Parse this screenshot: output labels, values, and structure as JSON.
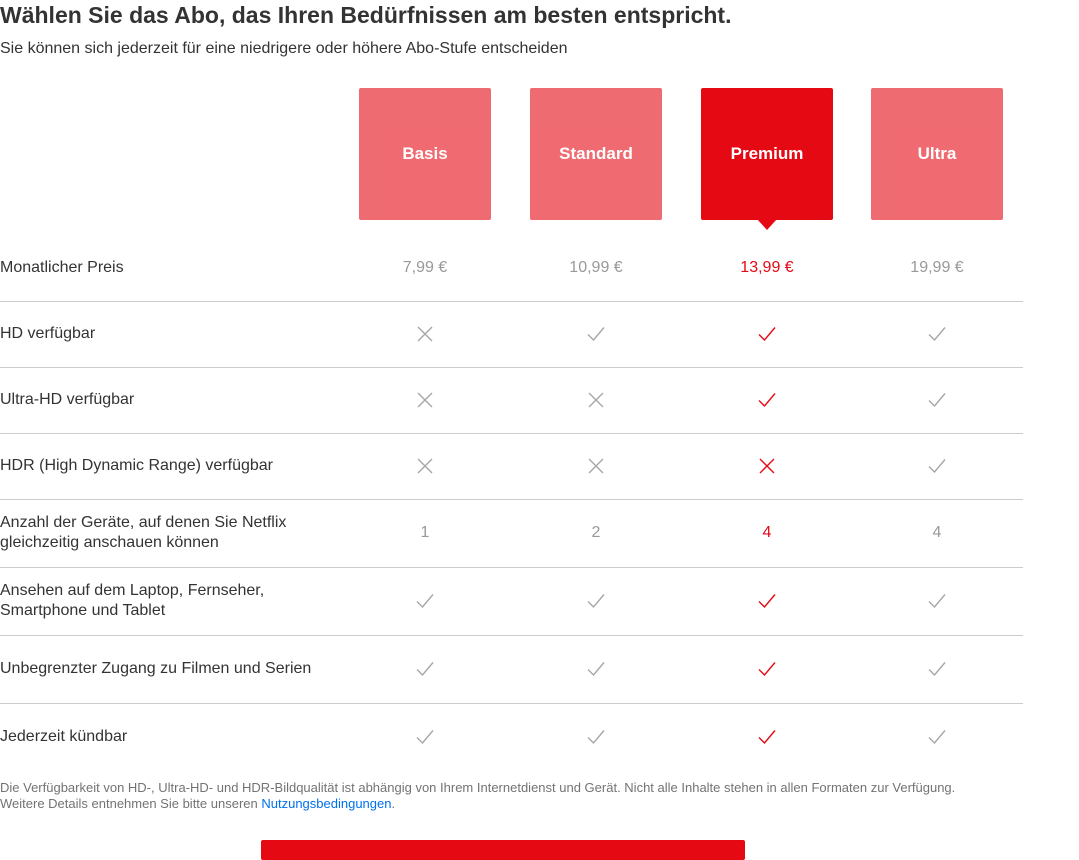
{
  "header": {
    "title": "Wählen Sie das Abo, das Ihren Bedürfnissen am besten entspricht.",
    "subtitle": "Sie können sich jederzeit für eine niedrigere oder höhere Abo-Stufe entscheiden"
  },
  "plans": [
    {
      "name": "Basis",
      "selected": false
    },
    {
      "name": "Standard",
      "selected": false
    },
    {
      "name": "Premium",
      "selected": true
    },
    {
      "name": "Ultra",
      "selected": false
    }
  ],
  "rows": [
    {
      "label": "Monatlicher Preis",
      "values": [
        "7,99 €",
        "10,99 €",
        "13,99 €",
        "19,99 €"
      ]
    },
    {
      "label": "HD verfügbar",
      "values": [
        "cross",
        "check",
        "check",
        "check"
      ]
    },
    {
      "label": "Ultra-HD verfügbar",
      "values": [
        "cross",
        "cross",
        "check",
        "check"
      ]
    },
    {
      "label": "HDR (High Dynamic Range) verfügbar",
      "values": [
        "cross",
        "cross",
        "cross",
        "check"
      ]
    },
    {
      "label": "Anzahl der Geräte, auf denen Sie Netflix gleichzeitig anschauen können",
      "values": [
        "1",
        "2",
        "4",
        "4"
      ]
    },
    {
      "label": "Ansehen auf dem Laptop, Fernseher, Smartphone und Tablet",
      "values": [
        "check",
        "check",
        "check",
        "check"
      ]
    },
    {
      "label": "Unbegrenzter Zugang zu Filmen und Serien",
      "values": [
        "check",
        "check",
        "check",
        "check"
      ]
    },
    {
      "label": "Jederzeit kündbar",
      "values": [
        "check",
        "check",
        "check",
        "check"
      ]
    }
  ],
  "footnote": {
    "text": "Die Verfügbarkeit von HD-, Ultra-HD- und HDR-Bildqualität ist abhängig von Ihrem Internetdienst und Gerät. Nicht alle Inhalte stehen in allen Formaten zur Verfügung. Weitere Details entnehmen Sie bitte unseren ",
    "link": "Nutzungsbedingungen",
    "suffix": "."
  },
  "colors": {
    "accent": "#e50914",
    "muted": "#999999",
    "link": "#0071eb"
  }
}
